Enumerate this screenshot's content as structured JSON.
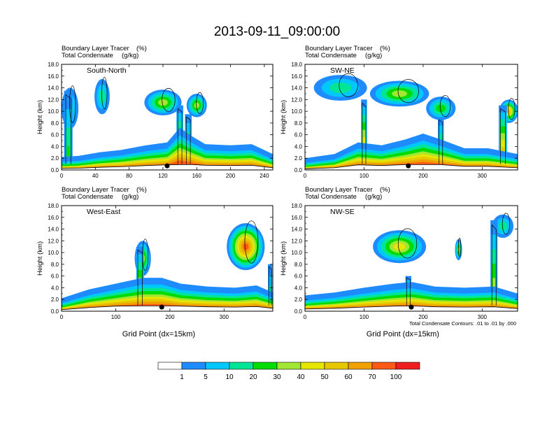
{
  "title": "2013-09-11_09:00:00",
  "colors": {
    "levels": [
      "#ffffff",
      "#1e8cff",
      "#00c8ff",
      "#00e696",
      "#00dc00",
      "#a0e632",
      "#e6e600",
      "#e6c800",
      "#f0a000",
      "#fa5a14",
      "#f01e1e"
    ],
    "contour": "#000000",
    "frame": "#000000"
  },
  "colorbar": {
    "labels": [
      "1",
      "5",
      "10",
      "20",
      "30",
      "40",
      "50",
      "60",
      "70",
      "100"
    ]
  },
  "chart_data": [
    {
      "type": "heatmap",
      "panel": "South-North",
      "subtitle_left": "Boundary Layer Tracer",
      "subtitle_units": "(%)",
      "subtitle2_left": "Total Condensate",
      "subtitle2_units": "(g/kg)",
      "xlabel": "",
      "ylabel": "Height (km)",
      "xlim": [
        0,
        250
      ],
      "ylim": [
        0,
        18
      ],
      "xticks": [
        "0",
        "40",
        "80",
        "120",
        "160",
        "200",
        "240"
      ],
      "yticks": [
        "0.0",
        "2.0",
        "4.0",
        "6.0",
        "8.0",
        "10.0",
        "12.0",
        "14.0",
        "16.0",
        "18.0"
      ],
      "profile": [
        {
          "x": 0,
          "h": 1.0,
          "v": 60
        },
        {
          "x": 20,
          "h": 1.2,
          "v": 65
        },
        {
          "x": 45,
          "h": 1.8,
          "v": 75
        },
        {
          "x": 70,
          "h": 2.2,
          "v": 80
        },
        {
          "x": 100,
          "h": 3.0,
          "v": 85
        },
        {
          "x": 125,
          "h": 3.5,
          "v": 90
        },
        {
          "x": 140,
          "h": 6.0,
          "v": 95
        },
        {
          "x": 155,
          "h": 4.5,
          "v": 85
        },
        {
          "x": 170,
          "h": 3.2,
          "v": 80
        },
        {
          "x": 200,
          "h": 3.0,
          "v": 75
        },
        {
          "x": 225,
          "h": 3.2,
          "v": 70
        },
        {
          "x": 250,
          "h": 1.5,
          "v": 60
        }
      ],
      "towers": [
        {
          "x": 8,
          "w": 10,
          "top": 13.5,
          "v": 20
        },
        {
          "x": 140,
          "w": 8,
          "top": 11.0,
          "v": 60
        },
        {
          "x": 150,
          "w": 8,
          "top": 9.5,
          "v": 40
        }
      ],
      "clouds": [
        {
          "cx": 10,
          "cy": 10.5,
          "rx": 10,
          "ry": 3.5,
          "v": 15
        },
        {
          "cx": 48,
          "cy": 12.5,
          "rx": 9,
          "ry": 3.0,
          "v": 10
        },
        {
          "cx": 120,
          "cy": 11.5,
          "rx": 22,
          "ry": 2.2,
          "v": 30
        },
        {
          "cx": 160,
          "cy": 11.0,
          "rx": 12,
          "ry": 2.0,
          "v": 35
        }
      ],
      "marker_x": 125
    },
    {
      "type": "heatmap",
      "panel": "SW-NE",
      "subtitle_left": "Boundary Layer Tracer",
      "subtitle_units": "(%)",
      "subtitle2_left": "Total Condensate",
      "subtitle2_units": "(g/kg)",
      "xlabel": "",
      "ylabel": "Height (km)",
      "xlim": [
        0,
        360
      ],
      "ylim": [
        0,
        18
      ],
      "xticks": [
        "0",
        "100",
        "200",
        "300"
      ],
      "yticks": [
        "0.0",
        "2.0",
        "4.0",
        "6.0",
        "8.0",
        "10.0",
        "12.0",
        "14.0",
        "16.0",
        "18.0"
      ],
      "profile": [
        {
          "x": 0,
          "h": 0.8,
          "v": 60
        },
        {
          "x": 50,
          "h": 1.5,
          "v": 70
        },
        {
          "x": 90,
          "h": 3.5,
          "v": 85
        },
        {
          "x": 130,
          "h": 3.0,
          "v": 85
        },
        {
          "x": 170,
          "h": 4.0,
          "v": 90
        },
        {
          "x": 200,
          "h": 5.0,
          "v": 95
        },
        {
          "x": 230,
          "h": 4.0,
          "v": 85
        },
        {
          "x": 270,
          "h": 2.5,
          "v": 75
        },
        {
          "x": 310,
          "h": 2.5,
          "v": 70
        },
        {
          "x": 360,
          "h": 1.5,
          "v": 60
        }
      ],
      "towers": [
        {
          "x": 100,
          "w": 10,
          "top": 12.0,
          "v": 70
        },
        {
          "x": 230,
          "w": 10,
          "top": 9.0,
          "v": 45
        },
        {
          "x": 335,
          "w": 14,
          "top": 11.0,
          "v": 80
        }
      ],
      "clouds": [
        {
          "cx": 60,
          "cy": 14.0,
          "rx": 45,
          "ry": 2.2,
          "v": 15
        },
        {
          "cx": 160,
          "cy": 13.0,
          "rx": 50,
          "ry": 2.2,
          "v": 30
        },
        {
          "cx": 230,
          "cy": 10.5,
          "rx": 25,
          "ry": 2.0,
          "v": 25
        },
        {
          "cx": 345,
          "cy": 10.0,
          "rx": 16,
          "ry": 2.0,
          "v": 50
        }
      ],
      "marker_x": 175
    },
    {
      "type": "heatmap",
      "panel": "West-East",
      "subtitle_left": "Boundary Layer Tracer",
      "subtitle_units": "(%)",
      "subtitle2_left": "Total Condensate",
      "subtitle2_units": "(g/kg)",
      "xlabel": "Grid Point (dx=15km)",
      "ylabel": "Height (km)",
      "xlim": [
        0,
        390
      ],
      "ylim": [
        0,
        18
      ],
      "xticks": [
        "0",
        "100",
        "200",
        "300"
      ],
      "yticks": [
        "0.0",
        "2.0",
        "4.0",
        "6.0",
        "8.0",
        "10.0",
        "12.0",
        "14.0",
        "16.0",
        "18.0"
      ],
      "profile": [
        {
          "x": 0,
          "h": 1.0,
          "v": 65
        },
        {
          "x": 50,
          "h": 2.5,
          "v": 75
        },
        {
          "x": 100,
          "h": 3.5,
          "v": 85
        },
        {
          "x": 150,
          "h": 4.5,
          "v": 90
        },
        {
          "x": 185,
          "h": 4.5,
          "v": 95
        },
        {
          "x": 220,
          "h": 3.5,
          "v": 90
        },
        {
          "x": 270,
          "h": 3.0,
          "v": 85
        },
        {
          "x": 320,
          "h": 2.8,
          "v": 80
        },
        {
          "x": 360,
          "h": 3.2,
          "v": 80
        },
        {
          "x": 390,
          "h": 2.0,
          "v": 70
        }
      ],
      "towers": [
        {
          "x": 145,
          "w": 14,
          "top": 11.0,
          "v": 60
        },
        {
          "x": 385,
          "w": 8,
          "top": 8.0,
          "v": 20
        }
      ],
      "clouds": [
        {
          "cx": 340,
          "cy": 11.0,
          "rx": 35,
          "ry": 4.0,
          "v": 80
        },
        {
          "cx": 150,
          "cy": 9.0,
          "rx": 15,
          "ry": 3.0,
          "v": 35
        }
      ],
      "marker_x": 185
    },
    {
      "type": "heatmap",
      "panel": "NW-SE",
      "subtitle_left": "Boundary Layer Tracer",
      "subtitle_units": "(%)",
      "subtitle2_left": "Total Condensate",
      "subtitle2_units": "(g/kg)",
      "xlabel": "Grid Point (dx=15km)",
      "ylabel": "Height (km)",
      "note": "Total Condensate Contours: .01 to .01 by .000",
      "xlim": [
        0,
        360
      ],
      "ylim": [
        0,
        18
      ],
      "xticks": [
        "0",
        "100",
        "200",
        "300"
      ],
      "yticks": [
        "0.0",
        "2.0",
        "4.0",
        "6.0",
        "8.0",
        "10.0",
        "12.0",
        "14.0",
        "16.0",
        "18.0"
      ],
      "profile": [
        {
          "x": 0,
          "h": 1.5,
          "v": 60
        },
        {
          "x": 50,
          "h": 2.0,
          "v": 70
        },
        {
          "x": 100,
          "h": 2.8,
          "v": 75
        },
        {
          "x": 150,
          "h": 3.5,
          "v": 85
        },
        {
          "x": 180,
          "h": 3.8,
          "v": 90
        },
        {
          "x": 220,
          "h": 3.0,
          "v": 80
        },
        {
          "x": 270,
          "h": 2.8,
          "v": 80
        },
        {
          "x": 320,
          "h": 3.0,
          "v": 85
        },
        {
          "x": 360,
          "h": 1.8,
          "v": 60
        }
      ],
      "towers": [
        {
          "x": 320,
          "w": 12,
          "top": 15.5,
          "v": 40
        },
        {
          "x": 175,
          "w": 10,
          "top": 6.0,
          "v": 60
        }
      ],
      "clouds": [
        {
          "cx": 160,
          "cy": 11.0,
          "rx": 45,
          "ry": 2.8,
          "v": 40
        },
        {
          "cx": 260,
          "cy": 10.5,
          "rx": 6,
          "ry": 1.8,
          "v": 30
        },
        {
          "cx": 335,
          "cy": 14.5,
          "rx": 18,
          "ry": 2.0,
          "v": 15
        }
      ],
      "marker_x": 180
    }
  ]
}
